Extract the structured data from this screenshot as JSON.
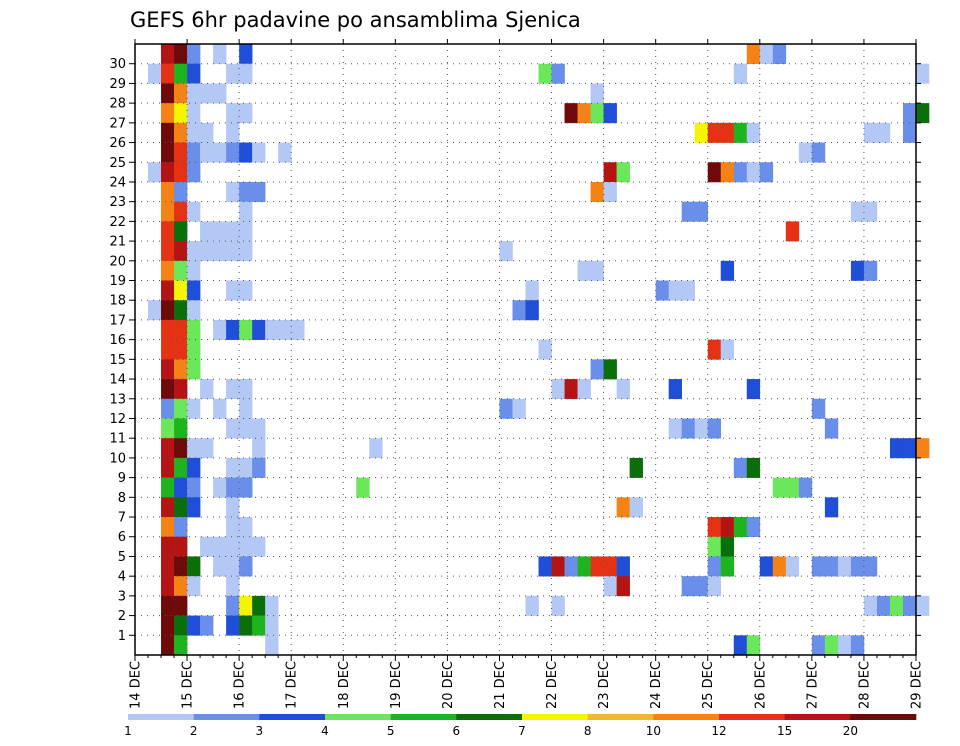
{
  "chart_data": {
    "type": "heatmap",
    "title": "GEFS 6hr padavine po ansamblima Sjenica",
    "xlabel": "",
    "ylabel": "",
    "x_ticks": [
      "14 DEC",
      "15 DEC",
      "16 DEC",
      "17 DEC",
      "18 DEC",
      "19 DEC",
      "20 DEC",
      "21 DEC",
      "22 DEC",
      "23 DEC",
      "24 DEC",
      "25 DEC",
      "26 DEC",
      "27 DEC",
      "28 DEC",
      "29 DEC"
    ],
    "y_ticks": [
      "1",
      "2",
      "3",
      "4",
      "5",
      "6",
      "7",
      "8",
      "9",
      "10",
      "11",
      "12",
      "13",
      "14",
      "15",
      "16",
      "17",
      "18",
      "19",
      "20",
      "21",
      "22",
      "23",
      "24",
      "25",
      "26",
      "27",
      "28",
      "29",
      "30"
    ],
    "x_range": [
      "14 DEC",
      "29 DEC"
    ],
    "y_range": [
      0,
      30
    ],
    "grid": true,
    "time_step_hours": 6,
    "colorbar": {
      "labels": [
        "1",
        "2",
        "3",
        "4",
        "5",
        "6",
        "7",
        "8",
        "10",
        "12",
        "15",
        "20"
      ],
      "colors": [
        "#b4c8f5",
        "#6a8fea",
        "#1f4fd8",
        "#6ae85a",
        "#1eb41e",
        "#0a6e0a",
        "#f5f500",
        "#f5b432",
        "#f58214",
        "#e63214",
        "#b41414",
        "#6e0a0a"
      ]
    },
    "cells": [
      [
        30,
        2,
        11
      ],
      [
        30,
        3,
        12
      ],
      [
        30,
        4,
        2
      ],
      [
        30,
        6,
        1
      ],
      [
        30,
        8,
        3
      ],
      [
        30,
        47,
        9
      ],
      [
        30,
        48,
        1
      ],
      [
        30,
        49,
        2
      ],
      [
        29,
        1,
        1
      ],
      [
        29,
        2,
        10
      ],
      [
        29,
        3,
        5
      ],
      [
        29,
        4,
        3
      ],
      [
        29,
        7,
        1
      ],
      [
        29,
        8,
        1
      ],
      [
        29,
        31,
        4
      ],
      [
        29,
        32,
        2
      ],
      [
        29,
        46,
        1
      ],
      [
        29,
        60,
        1
      ],
      [
        28,
        2,
        12
      ],
      [
        28,
        3,
        9
      ],
      [
        28,
        4,
        1
      ],
      [
        28,
        5,
        1
      ],
      [
        28,
        6,
        1
      ],
      [
        28,
        35,
        1
      ],
      [
        27,
        2,
        9
      ],
      [
        27,
        3,
        7
      ],
      [
        27,
        4,
        1
      ],
      [
        27,
        7,
        1
      ],
      [
        27,
        8,
        1
      ],
      [
        27,
        33,
        12
      ],
      [
        27,
        34,
        9
      ],
      [
        27,
        35,
        4
      ],
      [
        27,
        36,
        3
      ],
      [
        27,
        59,
        2
      ],
      [
        27,
        60,
        6
      ],
      [
        26,
        2,
        12
      ],
      [
        26,
        3,
        9
      ],
      [
        26,
        4,
        1
      ],
      [
        26,
        5,
        1
      ],
      [
        26,
        7,
        1
      ],
      [
        26,
        43,
        7
      ],
      [
        26,
        44,
        10
      ],
      [
        26,
        45,
        10
      ],
      [
        26,
        46,
        5
      ],
      [
        26,
        47,
        1
      ],
      [
        26,
        56,
        1
      ],
      [
        26,
        57,
        1
      ],
      [
        26,
        59,
        2
      ],
      [
        25,
        2,
        12
      ],
      [
        25,
        3,
        10
      ],
      [
        25,
        4,
        2
      ],
      [
        25,
        5,
        1
      ],
      [
        25,
        6,
        1
      ],
      [
        25,
        7,
        2
      ],
      [
        25,
        8,
        3
      ],
      [
        25,
        9,
        1
      ],
      [
        25,
        11,
        1
      ],
      [
        25,
        51,
        1
      ],
      [
        25,
        52,
        2
      ],
      [
        24,
        1,
        1
      ],
      [
        24,
        2,
        11
      ],
      [
        24,
        3,
        10
      ],
      [
        24,
        4,
        2
      ],
      [
        24,
        36,
        11
      ],
      [
        24,
        37,
        4
      ],
      [
        24,
        44,
        12
      ],
      [
        24,
        45,
        9
      ],
      [
        24,
        46,
        2
      ],
      [
        24,
        47,
        1
      ],
      [
        24,
        48,
        2
      ],
      [
        23,
        2,
        9
      ],
      [
        23,
        3,
        2
      ],
      [
        23,
        7,
        1
      ],
      [
        23,
        8,
        2
      ],
      [
        23,
        9,
        2
      ],
      [
        23,
        35,
        9
      ],
      [
        23,
        36,
        1
      ],
      [
        22,
        2,
        9
      ],
      [
        22,
        3,
        10
      ],
      [
        22,
        4,
        1
      ],
      [
        22,
        8,
        1
      ],
      [
        22,
        42,
        2
      ],
      [
        22,
        43,
        2
      ],
      [
        22,
        55,
        1
      ],
      [
        22,
        56,
        1
      ],
      [
        21,
        2,
        10
      ],
      [
        21,
        3,
        6
      ],
      [
        21,
        5,
        1
      ],
      [
        21,
        6,
        1
      ],
      [
        21,
        7,
        1
      ],
      [
        21,
        8,
        1
      ],
      [
        21,
        50,
        10
      ],
      [
        20,
        2,
        10
      ],
      [
        20,
        3,
        11
      ],
      [
        20,
        4,
        1
      ],
      [
        20,
        5,
        1
      ],
      [
        20,
        6,
        1
      ],
      [
        20,
        7,
        1
      ],
      [
        20,
        8,
        1
      ],
      [
        20,
        28,
        1
      ],
      [
        19,
        2,
        9
      ],
      [
        19,
        3,
        4
      ],
      [
        19,
        4,
        1
      ],
      [
        19,
        34,
        1
      ],
      [
        19,
        35,
        1
      ],
      [
        19,
        45,
        3
      ],
      [
        19,
        55,
        3
      ],
      [
        19,
        56,
        2
      ],
      [
        18,
        2,
        11
      ],
      [
        18,
        3,
        7
      ],
      [
        18,
        4,
        3
      ],
      [
        18,
        7,
        1
      ],
      [
        18,
        8,
        1
      ],
      [
        18,
        30,
        1
      ],
      [
        18,
        40,
        2
      ],
      [
        18,
        41,
        1
      ],
      [
        18,
        42,
        1
      ],
      [
        17,
        1,
        1
      ],
      [
        17,
        2,
        12
      ],
      [
        17,
        3,
        6
      ],
      [
        17,
        4,
        1
      ],
      [
        17,
        29,
        2
      ],
      [
        17,
        30,
        3
      ],
      [
        16,
        2,
        10
      ],
      [
        16,
        3,
        10
      ],
      [
        16,
        4,
        4
      ],
      [
        16,
        6,
        1
      ],
      [
        16,
        7,
        3
      ],
      [
        16,
        8,
        4
      ],
      [
        16,
        9,
        3
      ],
      [
        16,
        10,
        1
      ],
      [
        16,
        11,
        1
      ],
      [
        16,
        12,
        1
      ],
      [
        15,
        2,
        10
      ],
      [
        15,
        3,
        10
      ],
      [
        15,
        4,
        4
      ],
      [
        15,
        31,
        1
      ],
      [
        15,
        44,
        10
      ],
      [
        15,
        45,
        1
      ],
      [
        14,
        2,
        11
      ],
      [
        14,
        3,
        9
      ],
      [
        14,
        4,
        4
      ],
      [
        14,
        35,
        2
      ],
      [
        14,
        36,
        6
      ],
      [
        13,
        2,
        12
      ],
      [
        13,
        3,
        11
      ],
      [
        13,
        5,
        1
      ],
      [
        13,
        7,
        1
      ],
      [
        13,
        8,
        1
      ],
      [
        13,
        32,
        1
      ],
      [
        13,
        33,
        11
      ],
      [
        13,
        34,
        1
      ],
      [
        13,
        37,
        1
      ],
      [
        13,
        41,
        3
      ],
      [
        13,
        47,
        3
      ],
      [
        12,
        2,
        2
      ],
      [
        12,
        3,
        4
      ],
      [
        12,
        4,
        1
      ],
      [
        12,
        6,
        1
      ],
      [
        12,
        8,
        1
      ],
      [
        12,
        28,
        2
      ],
      [
        12,
        29,
        1
      ],
      [
        12,
        52,
        2
      ],
      [
        11,
        2,
        4
      ],
      [
        11,
        3,
        5
      ],
      [
        11,
        7,
        1
      ],
      [
        11,
        8,
        1
      ],
      [
        11,
        9,
        1
      ],
      [
        11,
        41,
        1
      ],
      [
        11,
        42,
        2
      ],
      [
        11,
        43,
        1
      ],
      [
        11,
        44,
        2
      ],
      [
        11,
        53,
        2
      ],
      [
        10,
        2,
        11
      ],
      [
        10,
        3,
        12
      ],
      [
        10,
        4,
        1
      ],
      [
        10,
        5,
        1
      ],
      [
        10,
        9,
        1
      ],
      [
        10,
        18,
        1
      ],
      [
        10,
        58,
        3
      ],
      [
        10,
        59,
        3
      ],
      [
        10,
        60,
        9
      ],
      [
        9,
        2,
        11
      ],
      [
        9,
        3,
        5
      ],
      [
        9,
        4,
        3
      ],
      [
        9,
        7,
        1
      ],
      [
        9,
        8,
        1
      ],
      [
        9,
        9,
        2
      ],
      [
        9,
        38,
        6
      ],
      [
        9,
        46,
        2
      ],
      [
        9,
        47,
        6
      ],
      [
        8,
        2,
        5
      ],
      [
        8,
        3,
        3
      ],
      [
        8,
        4,
        2
      ],
      [
        8,
        6,
        1
      ],
      [
        8,
        7,
        2
      ],
      [
        8,
        8,
        2
      ],
      [
        8,
        17,
        4
      ],
      [
        8,
        49,
        4
      ],
      [
        8,
        50,
        4
      ],
      [
        8,
        51,
        2
      ],
      [
        7,
        2,
        11
      ],
      [
        7,
        3,
        6
      ],
      [
        7,
        4,
        3
      ],
      [
        7,
        7,
        1
      ],
      [
        7,
        37,
        9
      ],
      [
        7,
        38,
        1
      ],
      [
        7,
        53,
        3
      ],
      [
        6,
        2,
        9
      ],
      [
        6,
        3,
        2
      ],
      [
        6,
        7,
        1
      ],
      [
        6,
        8,
        1
      ],
      [
        6,
        44,
        10
      ],
      [
        6,
        45,
        11
      ],
      [
        6,
        46,
        5
      ],
      [
        6,
        47,
        2
      ],
      [
        5,
        2,
        11
      ],
      [
        5,
        3,
        11
      ],
      [
        5,
        5,
        1
      ],
      [
        5,
        6,
        1
      ],
      [
        5,
        7,
        1
      ],
      [
        5,
        8,
        1
      ],
      [
        5,
        9,
        1
      ],
      [
        5,
        44,
        4
      ],
      [
        5,
        45,
        6
      ],
      [
        4,
        2,
        11
      ],
      [
        4,
        3,
        12
      ],
      [
        4,
        4,
        6
      ],
      [
        4,
        6,
        1
      ],
      [
        4,
        7,
        1
      ],
      [
        4,
        8,
        2
      ],
      [
        4,
        31,
        3
      ],
      [
        4,
        32,
        11
      ],
      [
        4,
        33,
        2
      ],
      [
        4,
        34,
        5
      ],
      [
        4,
        35,
        10
      ],
      [
        4,
        36,
        10
      ],
      [
        4,
        37,
        3
      ],
      [
        4,
        44,
        2
      ],
      [
        4,
        45,
        5
      ],
      [
        4,
        48,
        3
      ],
      [
        4,
        49,
        9
      ],
      [
        4,
        50,
        1
      ],
      [
        4,
        52,
        2
      ],
      [
        4,
        53,
        2
      ],
      [
        4,
        54,
        1
      ],
      [
        4,
        55,
        2
      ],
      [
        4,
        56,
        2
      ],
      [
        3,
        2,
        11
      ],
      [
        3,
        3,
        9
      ],
      [
        3,
        4,
        1
      ],
      [
        3,
        7,
        1
      ],
      [
        3,
        36,
        1
      ],
      [
        3,
        37,
        11
      ],
      [
        3,
        42,
        2
      ],
      [
        3,
        43,
        2
      ],
      [
        3,
        44,
        1
      ],
      [
        2,
        2,
        12
      ],
      [
        2,
        3,
        12
      ],
      [
        2,
        7,
        2
      ],
      [
        2,
        8,
        7
      ],
      [
        2,
        9,
        6
      ],
      [
        2,
        10,
        1
      ],
      [
        2,
        30,
        1
      ],
      [
        2,
        32,
        1
      ],
      [
        2,
        56,
        1
      ],
      [
        2,
        57,
        2
      ],
      [
        2,
        58,
        4
      ],
      [
        2,
        59,
        2
      ],
      [
        2,
        60,
        1
      ],
      [
        1,
        2,
        12
      ],
      [
        1,
        3,
        6
      ],
      [
        1,
        4,
        3
      ],
      [
        1,
        5,
        2
      ],
      [
        1,
        7,
        3
      ],
      [
        1,
        8,
        6
      ],
      [
        1,
        9,
        5
      ],
      [
        1,
        10,
        1
      ],
      [
        0,
        2,
        12
      ],
      [
        0,
        3,
        5
      ],
      [
        0,
        10,
        1
      ],
      [
        0,
        46,
        3
      ],
      [
        0,
        47,
        4
      ],
      [
        0,
        52,
        2
      ],
      [
        0,
        53,
        4
      ],
      [
        0,
        54,
        1
      ],
      [
        0,
        55,
        2
      ]
    ]
  }
}
